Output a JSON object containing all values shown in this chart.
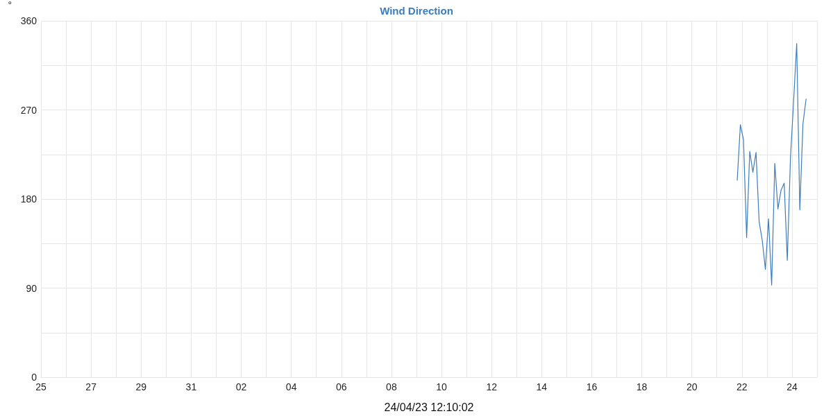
{
  "chart_data": {
    "type": "line",
    "title": "Wind Direction",
    "xlabel": "24/04/23 12:10:02",
    "ylabel": "°",
    "x": [
      "--04-21T19:30",
      "--04-21T22:30",
      "--04-22T01:30",
      "--04-22T04:30",
      "--04-22T07:30",
      "--04-22T10:30",
      "--04-22T13:30",
      "--04-22T16:30",
      "--04-22T19:30",
      "--04-22T22:30",
      "--04-23T01:30",
      "--04-23T04:30",
      "--04-23T07:30",
      "--04-23T10:30",
      "--04-23T13:30",
      "--04-23T16:30",
      "--04-23T19:30",
      "--04-23T22:30",
      "--04-24T01:30",
      "--04-24T04:30",
      "--04-24T07:30",
      "--04-24T10:30",
      "--04-24T13:30"
    ],
    "values": [
      199,
      255,
      240,
      141,
      228,
      207,
      227,
      157,
      138,
      109,
      160,
      93,
      216,
      170,
      189,
      196,
      118,
      221,
      278,
      337,
      169,
      256,
      281
    ],
    "color": "#3b7dbd",
    "line_style": "solid",
    "marker": "none",
    "grid": true,
    "xlim": [
      "--03-25",
      "--04-25"
    ],
    "xticks": [
      {
        "value": "--03-25",
        "label": "25"
      },
      {
        "value": "--03-26",
        "label": null
      },
      {
        "value": "--03-27",
        "label": "27"
      },
      {
        "value": "--03-28",
        "label": null
      },
      {
        "value": "--03-29",
        "label": "29"
      },
      {
        "value": "--03-30",
        "label": null
      },
      {
        "value": "--03-31",
        "label": "31"
      },
      {
        "value": "--04-01",
        "label": null
      },
      {
        "value": "--04-02",
        "label": "02"
      },
      {
        "value": "--04-03",
        "label": null
      },
      {
        "value": "--04-04",
        "label": "04"
      },
      {
        "value": "--04-05",
        "label": null
      },
      {
        "value": "--04-06",
        "label": "06"
      },
      {
        "value": "--04-07",
        "label": null
      },
      {
        "value": "--04-08",
        "label": "08"
      },
      {
        "value": "--04-09",
        "label": null
      },
      {
        "value": "--04-10",
        "label": "10"
      },
      {
        "value": "--04-11",
        "label": null
      },
      {
        "value": "--04-12",
        "label": "12"
      },
      {
        "value": "--04-13",
        "label": null
      },
      {
        "value": "--04-14",
        "label": "14"
      },
      {
        "value": "--04-15",
        "label": null
      },
      {
        "value": "--04-16",
        "label": "16"
      },
      {
        "value": "--04-17",
        "label": null
      },
      {
        "value": "--04-18",
        "label": "18"
      },
      {
        "value": "--04-19",
        "label": null
      },
      {
        "value": "--04-20",
        "label": "20"
      },
      {
        "value": "--04-21",
        "label": null
      },
      {
        "value": "--04-22",
        "label": "22"
      },
      {
        "value": "--04-23",
        "label": null
      },
      {
        "value": "--04-24",
        "label": "24"
      },
      {
        "value": "--04-25",
        "label": null
      }
    ],
    "ylim": [
      0,
      360
    ],
    "yticks": [
      0,
      {
        "value": 45,
        "label": null
      },
      90,
      {
        "value": 135,
        "label": null
      },
      180,
      {
        "value": 225,
        "label": null
      },
      270,
      {
        "value": 315,
        "label": null
      },
      360
    ]
  }
}
